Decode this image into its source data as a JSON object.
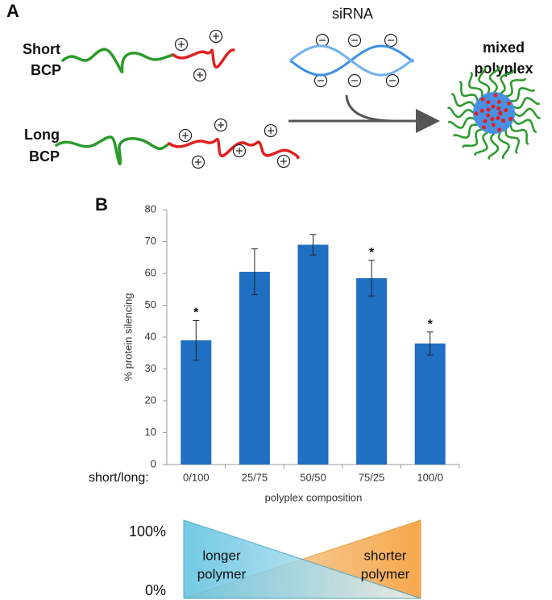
{
  "panel_a": {
    "label": "A",
    "short_bcp": [
      "Short",
      "BCP"
    ],
    "long_bcp": [
      "Long",
      "BCP"
    ],
    "sirna": "siRNA",
    "product": [
      "mixed",
      "polyplex"
    ]
  },
  "panel_b": {
    "label": "B",
    "row_label": "short/long:",
    "gradient": {
      "top": "100%",
      "bottom": "0%",
      "left": [
        "longer",
        "polymer"
      ],
      "right": [
        "shorter",
        "polymer"
      ]
    }
  },
  "chart_data": {
    "type": "bar",
    "ylabel": "% protein silencing",
    "xlabel": "polyplex composition",
    "categories": [
      "0/100",
      "25/75",
      "50/50",
      "75/25",
      "100/0"
    ],
    "values": [
      39,
      60.5,
      69,
      58.5,
      38
    ],
    "errors": [
      6.2,
      7.2,
      3.2,
      5.6,
      3.6
    ],
    "annotations": [
      "*",
      null,
      null,
      "*",
      "*"
    ],
    "color": "#1f6fc2",
    "ylim": [
      0,
      80
    ],
    "yticks": [
      0,
      10,
      20,
      30,
      40,
      50,
      60,
      70,
      80
    ]
  }
}
